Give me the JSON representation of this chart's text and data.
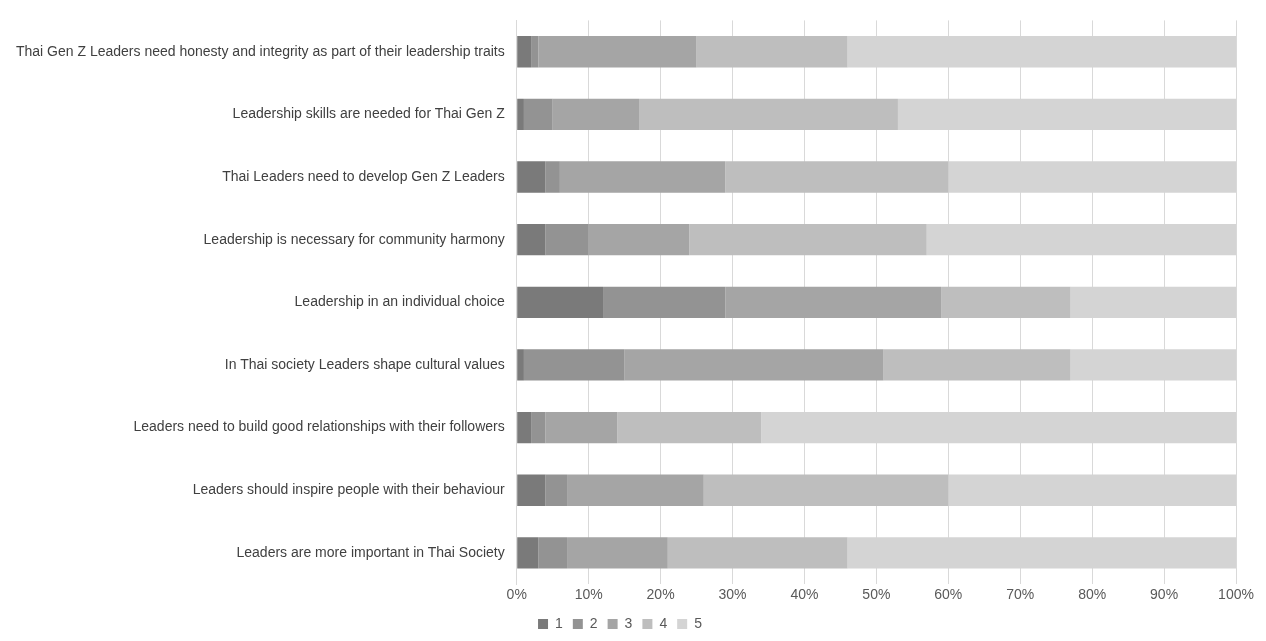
{
  "chart_data": {
    "type": "bar",
    "orientation": "horizontal",
    "stacked": true,
    "categories": [
      "Thai Gen Z Leaders need honesty and integrity as part of their leadership traits",
      "Leadership skills are needed for Thai Gen Z",
      "Thai Leaders need to develop Gen Z Leaders",
      "Leadership is necessary for community harmony",
      "Leadership in an individual choice",
      "In Thai society Leaders shape cultural values",
      "Leaders need to build good relationships with their followers",
      "Leaders should inspire people with their behaviour",
      "Leaders are more important in Thai Society"
    ],
    "series": [
      {
        "name": "1",
        "color": "#7a7a7a",
        "values": [
          2,
          1,
          4,
          4,
          12,
          1,
          2,
          4,
          3
        ]
      },
      {
        "name": "2",
        "color": "#939393",
        "values": [
          1,
          4,
          2,
          6,
          17,
          14,
          2,
          3,
          4
        ]
      },
      {
        "name": "3",
        "color": "#a5a5a5",
        "values": [
          22,
          12,
          23,
          14,
          30,
          36,
          10,
          19,
          14
        ]
      },
      {
        "name": "4",
        "color": "#bebebe",
        "values": [
          21,
          36,
          31,
          33,
          18,
          26,
          20,
          34,
          25
        ]
      },
      {
        "name": "5",
        "color": "#d4d4d4",
        "values": [
          54,
          47,
          40,
          43,
          23,
          23,
          66,
          40,
          54
        ]
      }
    ],
    "xlim": [
      0,
      100
    ],
    "xticks": [
      {
        "value": 0,
        "label": "0%"
      },
      {
        "value": 10,
        "label": "10%"
      },
      {
        "value": 20,
        "label": "20%"
      },
      {
        "value": 30,
        "label": "30%"
      },
      {
        "value": 40,
        "label": "40%"
      },
      {
        "value": 50,
        "label": "50%"
      },
      {
        "value": 60,
        "label": "60%"
      },
      {
        "value": 70,
        "label": "70%"
      },
      {
        "value": 80,
        "label": "80%"
      },
      {
        "value": 90,
        "label": "90%"
      },
      {
        "value": 100,
        "label": "100%"
      }
    ],
    "grid": "x",
    "legend": "bottom"
  }
}
